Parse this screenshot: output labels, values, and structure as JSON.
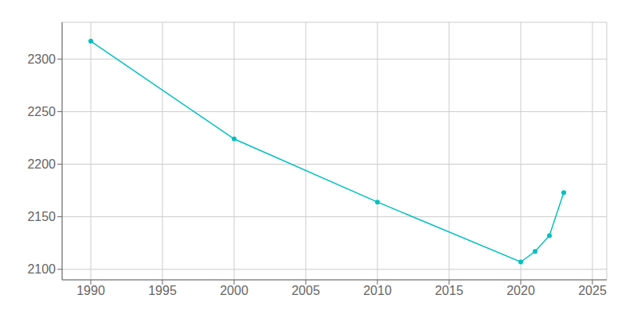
{
  "chart_data": {
    "type": "line",
    "x": [
      1990,
      2000,
      2010,
      2020,
      2021,
      2022,
      2023
    ],
    "values": [
      2317,
      2224,
      2164,
      2107,
      2117,
      2132,
      2173
    ],
    "color": "#00C0C0",
    "marker": "circle",
    "xlim": [
      1988,
      2026
    ],
    "ylim": [
      2090,
      2335
    ],
    "xticks": [
      1990,
      1995,
      2000,
      2005,
      2010,
      2015,
      2020,
      2025
    ],
    "yticks": [
      2100,
      2150,
      2200,
      2250,
      2300
    ],
    "grid": true
  }
}
